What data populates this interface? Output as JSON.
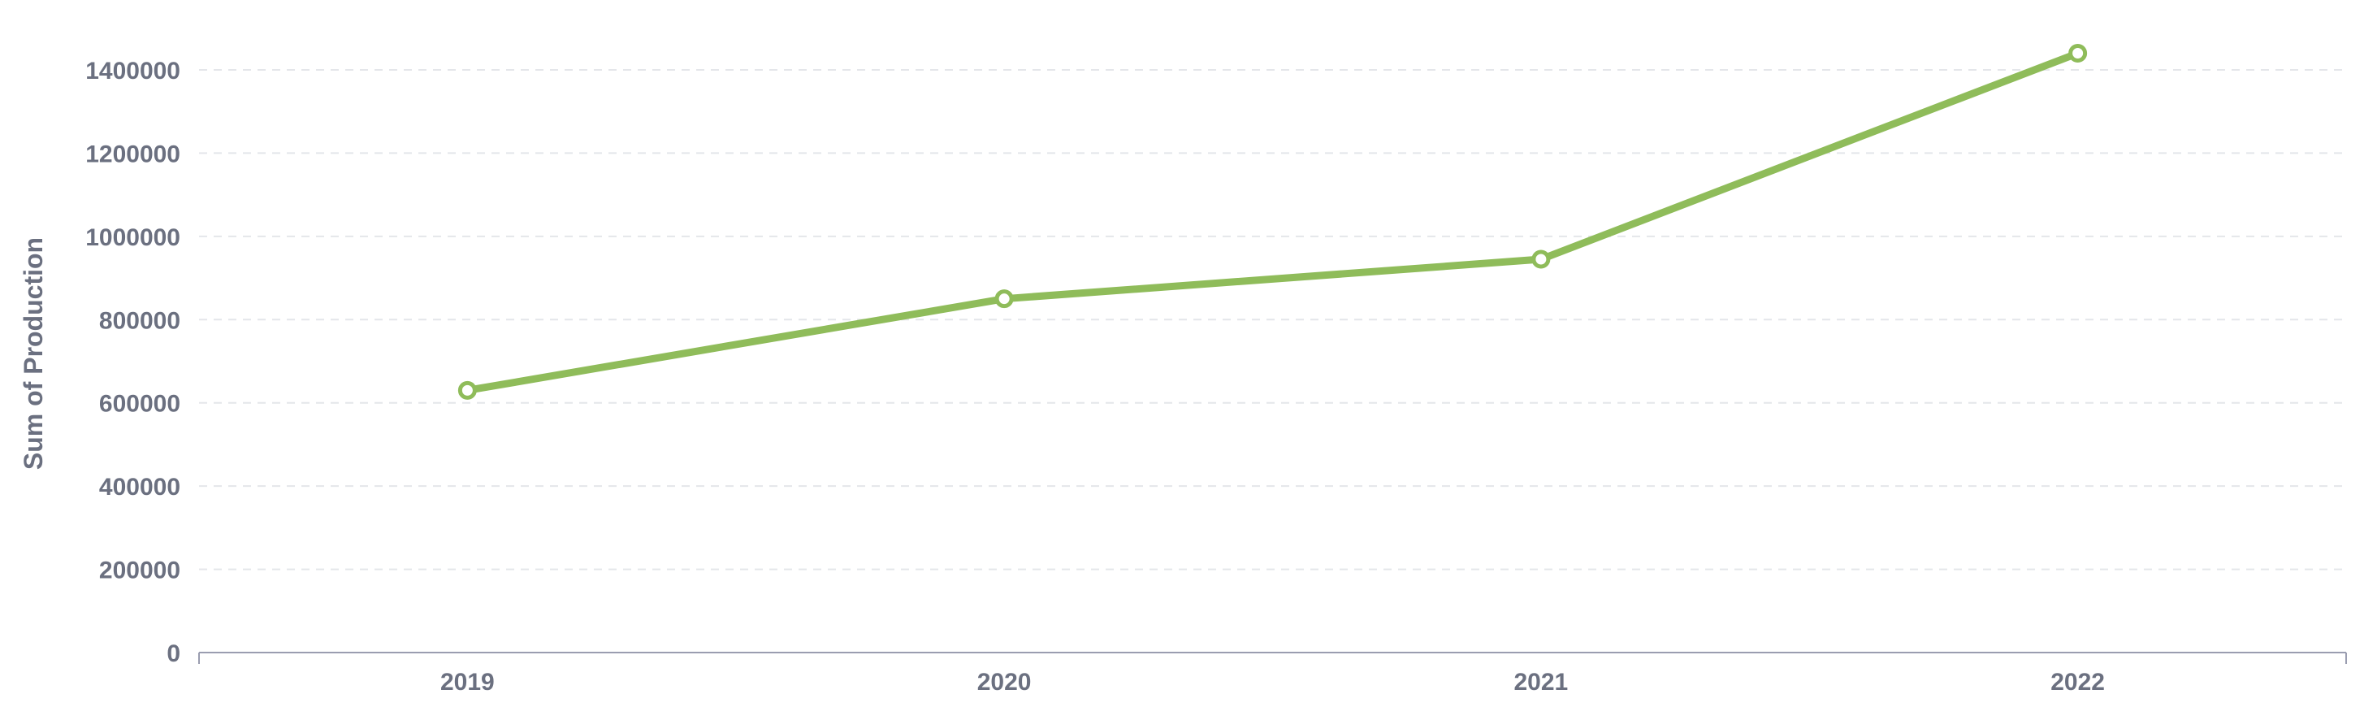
{
  "chart_data": {
    "type": "line",
    "categories": [
      "2019",
      "2020",
      "2021",
      "2022"
    ],
    "series": [
      {
        "values": [
          630000,
          850000,
          945000,
          1440000
        ]
      }
    ],
    "xlabel": "",
    "ylabel": "Sum of Production",
    "ylim": [
      0,
      1400000
    ],
    "y_ticks": [
      "0",
      "200000",
      "400000",
      "600000",
      "800000",
      "1000000",
      "1200000",
      "1400000"
    ],
    "y_tick_values": [
      0,
      200000,
      400000,
      600000,
      800000,
      1000000,
      1200000,
      1400000
    ],
    "grid": true,
    "grid_style": "dashed horizontal",
    "legend": "none",
    "colors": {
      "line": "#8fbc5a",
      "grid": "#e4e6ea",
      "axis": "#9a9db0",
      "text": "#6b7080",
      "marker_fill": "#ffffff"
    }
  }
}
